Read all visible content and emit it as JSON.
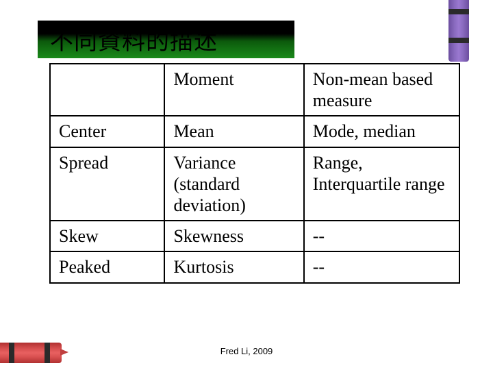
{
  "title": "不同資料的描述",
  "table": {
    "columns": [
      "",
      "Moment",
      "Non-mean based measure"
    ],
    "rows": [
      [
        "Center",
        "Mean",
        "Mode, median"
      ],
      [
        "Spread",
        "Variance (standard deviation)",
        "Range, Interquartile range"
      ],
      [
        "Skew",
        "Skewness",
        "--"
      ],
      [
        "Peaked",
        "Kurtosis",
        "--"
      ]
    ],
    "border_color": "#000000",
    "font_size_pt": 20,
    "cell_bg": "#ffffff"
  },
  "footer": "Fred Li, 2009",
  "decor": {
    "crayon_purple_color": "#8a6bc0",
    "crayon_red_color": "#d85050",
    "banner_gradient_from": "#000000",
    "banner_gradient_to": "#1a8a1a"
  }
}
